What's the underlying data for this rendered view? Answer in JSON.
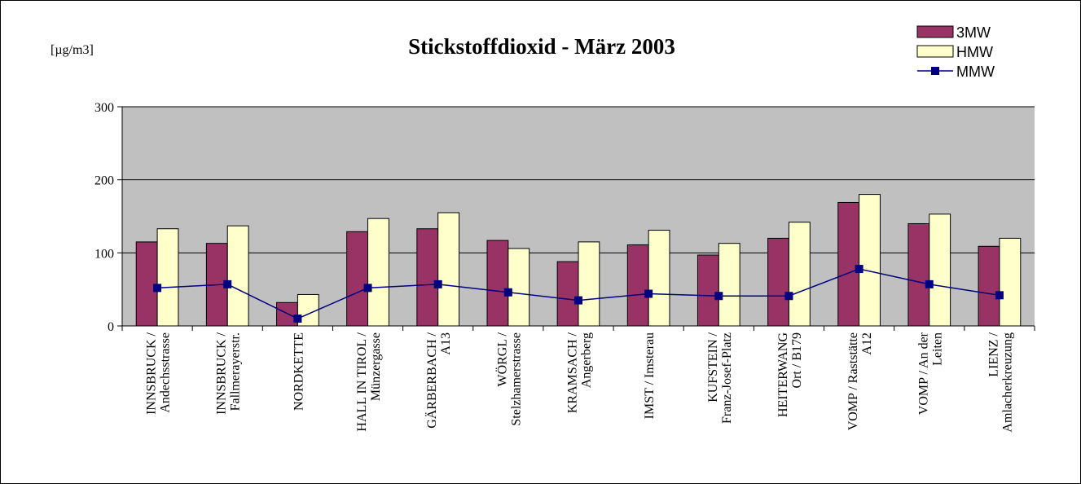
{
  "chart_data": {
    "type": "bar_line",
    "title": "Stickstoffdioxid - März 2003",
    "unit_label": "[µg/m3]",
    "categories": [
      [
        "INNSBRUCK /",
        "Andechsstrasse"
      ],
      [
        "INNSBRUCK /",
        "Fallmerayerstr."
      ],
      [
        "NORDKETTE"
      ],
      [
        "HALL IN TIROL /",
        "Münzergasse"
      ],
      [
        "GÄRBERBACH /",
        "A13"
      ],
      [
        "WÖRGL /",
        "Stelzhamerstrasse"
      ],
      [
        "KRAMSACH /",
        "Angerberg"
      ],
      [
        "IMST / Imsterau"
      ],
      [
        "KUFSTEIN /",
        "Franz-Josef-Platz"
      ],
      [
        "HEITERWANG",
        "Ort / B179"
      ],
      [
        "VOMP / Raststätte",
        "A12"
      ],
      [
        "VOMP / An der",
        "Leiten"
      ],
      [
        "LIENZ /",
        "Amlacherkreuzung"
      ]
    ],
    "series": [
      {
        "name": "3MW",
        "kind": "bar",
        "color": "#993366",
        "values": [
          115,
          113,
          32,
          129,
          133,
          117,
          88,
          111,
          97,
          120,
          169,
          140,
          109
        ]
      },
      {
        "name": "HMW",
        "kind": "bar",
        "color": "#ffffcc",
        "values": [
          133,
          137,
          43,
          147,
          155,
          106,
          115,
          131,
          113,
          142,
          180,
          153,
          120
        ]
      },
      {
        "name": "MMW",
        "kind": "line",
        "color": "#000080",
        "values": [
          52,
          57,
          10,
          52,
          57,
          46,
          35,
          44,
          41,
          41,
          78,
          57,
          42
        ]
      }
    ],
    "ylim": [
      0,
      300
    ],
    "yticks": [
      0,
      100,
      200,
      300
    ],
    "grid": true,
    "legend": "top-right"
  }
}
